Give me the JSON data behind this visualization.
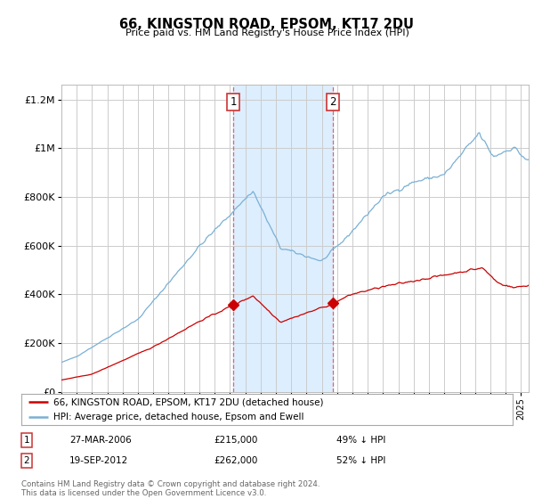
{
  "title": "66, KINGSTON ROAD, EPSOM, KT17 2DU",
  "subtitle": "Price paid vs. HM Land Registry's House Price Index (HPI)",
  "footer": "Contains HM Land Registry data © Crown copyright and database right 2024.\nThis data is licensed under the Open Government Licence v3.0.",
  "legend_line1": "66, KINGSTON ROAD, EPSOM, KT17 2DU (detached house)",
  "legend_line2": "HPI: Average price, detached house, Epsom and Ewell",
  "transaction1_label": "1",
  "transaction1_date": "27-MAR-2006",
  "transaction1_price": "£215,000",
  "transaction1_hpi": "49% ↓ HPI",
  "transaction1_year": 2006.21,
  "transaction1_value": 215000,
  "transaction2_label": "2",
  "transaction2_date": "19-SEP-2012",
  "transaction2_price": "£262,000",
  "transaction2_hpi": "52% ↓ HPI",
  "transaction2_year": 2012.72,
  "transaction2_value": 262000,
  "shade_color": "#ddeeff",
  "line_red": "#cc0000",
  "line_blue": "#7ab0d4",
  "background": "#ffffff",
  "grid_color": "#cccccc",
  "ylim": [
    0,
    1260000
  ],
  "yticks": [
    0,
    200000,
    400000,
    600000,
    800000,
    1000000,
    1200000
  ],
  "ytick_labels": [
    "£0",
    "£200K",
    "£400K",
    "£600K",
    "£800K",
    "£1M",
    "£1.2M"
  ],
  "xlim_start": 1995,
  "xlim_end": 2025.5
}
